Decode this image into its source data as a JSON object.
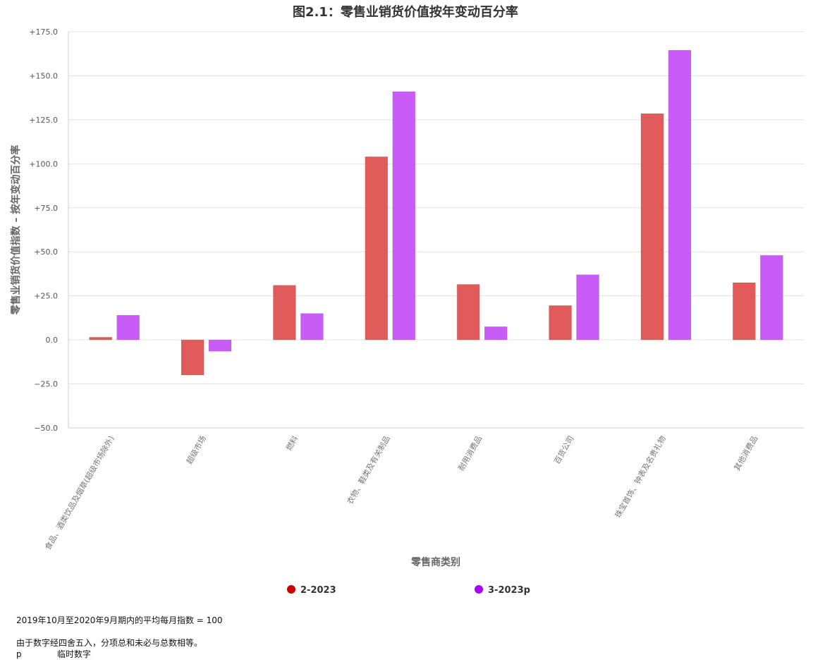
{
  "chart_data": {
    "type": "bar",
    "title": "图2.1：零售业销货价值按年变动百分率",
    "xlabel": "零售商类别",
    "ylabel": "零售业销货价值指数 – 按年变动百分率",
    "ylim": [
      -50,
      175
    ],
    "yticks": [
      "+175.0",
      "+150.0",
      "+125.0",
      "+100.0",
      "+75.0",
      "+50.0",
      "+25.0",
      "0.0",
      "−25.0",
      "−50.0"
    ],
    "ytick_values": [
      175,
      150,
      125,
      100,
      75,
      50,
      25,
      0,
      -25,
      -50
    ],
    "categories": [
      "食品、酒类饮品及烟草(超级市场除外)",
      "超级市场",
      "燃料",
      "衣物、鞋类及有关制品",
      "耐用消费品",
      "百货公司",
      "珠宝首饰、钟表及名贵礼物",
      "其他消费品"
    ],
    "series": [
      {
        "name": "2-2023",
        "color": "#e05252",
        "legend_color": "#cc0000",
        "values": [
          1.5,
          -20,
          31,
          104,
          31.5,
          19.5,
          128.5,
          32.5
        ]
      },
      {
        "name": "3-2023p",
        "color": "#c653f7",
        "legend_color": "#aa00ff",
        "values": [
          14,
          -6.5,
          15,
          141,
          7.5,
          37,
          164.5,
          48
        ]
      }
    ],
    "grid": true,
    "legend_position": "bottom-center"
  },
  "notes": {
    "base": "2019年10月至2020年9月期内的平均每月指数 = 100",
    "rounding": "由于数字经四舍五入，分项总和未必与总数相等。",
    "abbr_symbol": "p",
    "abbr_text": "临时数字"
  }
}
